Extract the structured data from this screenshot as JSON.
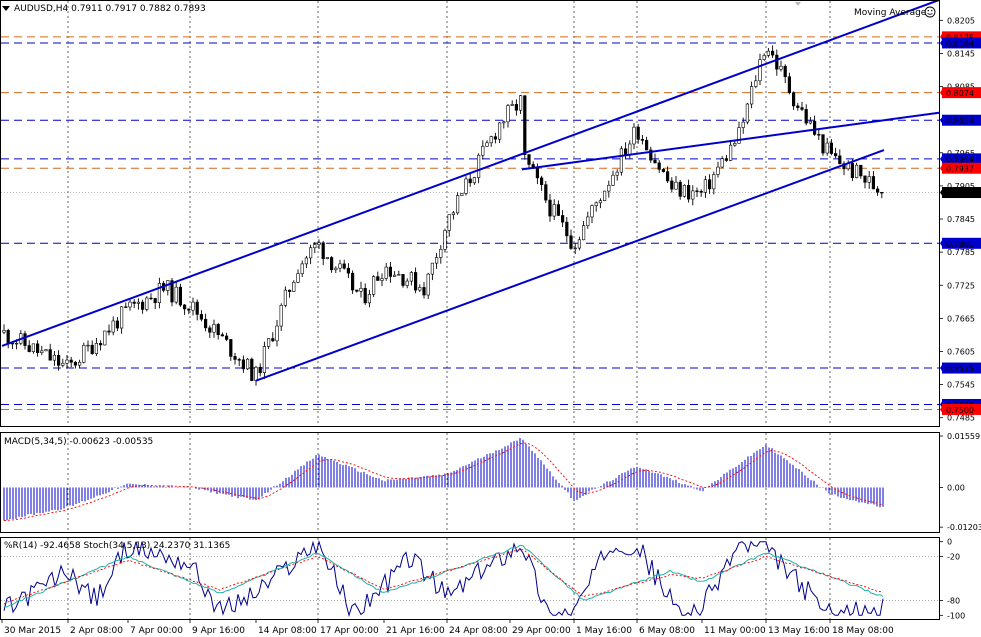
{
  "header": {
    "symbol_line": "AUDUSD,H4  0.7911 0.7917 0.7882 0.7893",
    "indicator_label": "Moving Average"
  },
  "colors": {
    "background": "#ffffff",
    "bull_candle": "#000000",
    "bear_candle": "#000000",
    "blue_line": "#0000cc",
    "orange_line": "#d2691e",
    "grid": "#000000",
    "macd_hist": "#0000cc",
    "macd_signal": "#ff0000",
    "wpr": "#00008b",
    "stoch_main": "#20b2aa",
    "stoch_signal": "#ff0000",
    "badge_red": "#ff0000",
    "badge_blue": "#0000cc",
    "badge_black": "#000000"
  },
  "chart_data": [
    {
      "type": "candlestick",
      "panel": "price",
      "symbol": "AUDUSD",
      "timeframe": "H4",
      "ylim": [
        0.747,
        0.824
      ],
      "y_ticks": [
        0.8205,
        0.8145,
        0.8085,
        0.8025,
        0.7965,
        0.7905,
        0.7845,
        0.7785,
        0.7725,
        0.7665,
        0.7605,
        0.7545,
        0.7485
      ],
      "y_tick_labels": [
        "0.8205",
        "0.8145",
        "0.8085",
        "",
        "0.7965",
        "0.7905",
        "0.7845",
        "0.7785",
        "0.7725",
        "0.7665",
        "0.7605",
        "0.7545",
        "0.7485"
      ],
      "x_tick_labels": [
        "30 Mar 2015",
        "2 Apr 08:00",
        "7 Apr 00:00",
        "9 Apr 16:00",
        "14 Apr 08:00",
        "17 Apr 00:00",
        "21 Apr 16:00",
        "24 Apr 08:00",
        "29 Apr 00:00",
        "1 May 16:00",
        "6 May 08:00",
        "11 May 00:00",
        "13 May 16:00",
        "18 May 08:00"
      ],
      "vertical_grid": [
        "2 Apr 08:00",
        "9 Apr 16:00",
        "17 Apr 00:00",
        "24 Apr 08:00",
        "1 May 16:00",
        "6 May 08:00",
        "13 May 16:00",
        "18 May 08:00"
      ],
      "ohlc_key_points": [
        [
          "30 Mar 2015",
          0.764
        ],
        [
          "2 Apr 08:00",
          0.7575
        ],
        [
          "7 Apr 00:00",
          0.768
        ],
        [
          "8 Apr 08:00",
          0.772
        ],
        [
          "9 Apr 16:00",
          0.769
        ],
        [
          "14 Apr 08:00",
          0.756
        ],
        [
          "16 Apr 00:00",
          0.776
        ],
        [
          "17 Apr 00:00",
          0.78
        ],
        [
          "20 Apr 08:00",
          0.77
        ],
        [
          "21 Apr 16:00",
          0.776
        ],
        [
          "22 Apr 16:00",
          0.772
        ],
        [
          "24 Apr 08:00",
          0.784
        ],
        [
          "27 Apr 08:00",
          0.802
        ],
        [
          "28 Apr 16:00",
          0.806
        ],
        [
          "29 Apr 00:00",
          0.8
        ],
        [
          "30 Apr 08:00",
          0.786
        ],
        [
          "1 May 16:00",
          0.78
        ],
        [
          "5 May 08:00",
          0.796
        ],
        [
          "6 May 08:00",
          0.801
        ],
        [
          "7 May 08:00",
          0.79
        ],
        [
          "11 May 00:00",
          0.789
        ],
        [
          "12 May 08:00",
          0.8
        ],
        [
          "13 May 00:00",
          0.813
        ],
        [
          "13 May 16:00",
          0.8164
        ],
        [
          "14 May 16:00",
          0.806
        ],
        [
          "15 May 16:00",
          0.8
        ],
        [
          "18 May 08:00",
          0.796
        ],
        [
          "19 May 08:00",
          0.7893
        ]
      ],
      "horizontal_levels": [
        {
          "value": 0.8175,
          "label": "0.8175",
          "style": "orange",
          "badge": "red"
        },
        {
          "value": 0.8164,
          "label": "0.8164",
          "style": "blue",
          "badge": "blue"
        },
        {
          "value": 0.8074,
          "label": "0.8074",
          "style": "orange",
          "badge": "red"
        },
        {
          "value": 0.8024,
          "label": "0.8024",
          "style": "blue",
          "badge": "blue"
        },
        {
          "value": 0.7954,
          "label": "0.7954",
          "style": "blue",
          "badge": "blue"
        },
        {
          "value": 0.7937,
          "label": "0.7937",
          "style": "orange",
          "badge": "red"
        },
        {
          "value": 0.7893,
          "label": "0.7893",
          "style": "gray",
          "badge": "black"
        },
        {
          "value": 0.7801,
          "label": "0.7801",
          "style": "blue",
          "badge": "blue"
        },
        {
          "value": 0.7575,
          "label": "0.7575",
          "style": "blue",
          "badge": "blue"
        },
        {
          "value": 0.7509,
          "label": "0.7509",
          "style": "blue",
          "badge": "blue"
        },
        {
          "value": 0.75,
          "label": "0.7500",
          "style": "orange",
          "badge": "red"
        }
      ],
      "trend_channel": {
        "upper": [
          [
            "30 Mar 2015",
            0.7615
          ],
          [
            "19 May 08:00",
            0.8205
          ]
        ],
        "lower": [
          [
            "14 Apr 08:00",
            0.7552
          ],
          [
            "19 May 08:00",
            0.797
          ]
        ],
        "middle": [
          [
            "28 Apr 16:00",
            0.7935
          ],
          [
            "19 May 08:00",
            0.8024
          ]
        ]
      }
    },
    {
      "type": "bar",
      "panel": "macd",
      "title": "MACD(5,34,5) -0.00623 -0.00535",
      "ylim": [
        -0.0135,
        0.0165
      ],
      "y_tick_labels": [
        "0.01559",
        "0.00",
        "-0.01203"
      ],
      "key_points": [
        [
          "30 Mar 2015",
          -0.01
        ],
        [
          "2 Apr 08:00",
          -0.006
        ],
        [
          "7 Apr 00:00",
          0.001
        ],
        [
          "9 Apr 16:00",
          0.0
        ],
        [
          "14 Apr 08:00",
          -0.004
        ],
        [
          "17 Apr 00:00",
          0.01
        ],
        [
          "21 Apr 16:00",
          0.002
        ],
        [
          "24 Apr 08:00",
          0.004
        ],
        [
          "28 Apr 16:00",
          0.015
        ],
        [
          "1 May 16:00",
          -0.004
        ],
        [
          "6 May 08:00",
          0.0065
        ],
        [
          "11 May 00:00",
          -0.001
        ],
        [
          "13 May 16:00",
          0.013
        ],
        [
          "18 May 08:00",
          -0.002
        ],
        [
          "19 May 08:00",
          -0.0062
        ]
      ]
    },
    {
      "type": "line",
      "panel": "wpr_stoch",
      "title": "%R(14) -92.4658  Stoch(34,5,13) 24.2370 31.1365",
      "ylim": [
        -105,
        5
      ],
      "y_tick_labels": [
        "0",
        "-20",
        "-80",
        "-100"
      ],
      "series": [
        {
          "name": "%R(14)",
          "key_points": [
            [
              "30 Mar 2015",
              -95
            ],
            [
              "2 Apr 08:00",
              -40
            ],
            [
              "4 Apr",
              -80
            ],
            [
              "7 Apr 00:00",
              -5
            ],
            [
              "9 Apr 16:00",
              -30
            ],
            [
              "11 Apr",
              -95
            ],
            [
              "14 Apr 08:00",
              -70
            ],
            [
              "17 Apr 00:00",
              0
            ],
            [
              "18 Apr",
              -98
            ],
            [
              "21 Apr 16:00",
              -60
            ],
            [
              "22 Apr",
              -20
            ],
            [
              "24 Apr 08:00",
              -75
            ],
            [
              "28 Apr 16:00",
              0
            ],
            [
              "30 Apr",
              -100
            ],
            [
              "1 May 16:00",
              -95
            ],
            [
              "4 May",
              0
            ],
            [
              "6 May 08:00",
              -5
            ],
            [
              "8 May",
              -100
            ],
            [
              "11 May 00:00",
              -90
            ],
            [
              "12 May",
              -5
            ],
            [
              "13 May 16:00",
              -10
            ],
            [
              "15 May",
              -60
            ],
            [
              "18 May 08:00",
              -100
            ],
            [
              "19 May 08:00",
              -92
            ]
          ]
        },
        {
          "name": "Stoch main",
          "key_points": [
            [
              "30 Mar 2015",
              -90
            ],
            [
              "7 Apr 00:00",
              -20
            ],
            [
              "11 Apr",
              -70
            ],
            [
              "17 Apr 00:00",
              -15
            ],
            [
              "21 Apr 16:00",
              -70
            ],
            [
              "28 Apr 16:00",
              -5
            ],
            [
              "2 May",
              -80
            ],
            [
              "7 May",
              -40
            ],
            [
              "11 May 00:00",
              -55
            ],
            [
              "13 May 16:00",
              -15
            ],
            [
              "19 May 08:00",
              -75
            ]
          ]
        },
        {
          "name": "Stoch signal",
          "key_points": [
            [
              "30 Mar 2015",
              -85
            ],
            [
              "7 Apr 00:00",
              -25
            ],
            [
              "11 Apr",
              -65
            ],
            [
              "17 Apr 00:00",
              -20
            ],
            [
              "21 Apr 16:00",
              -65
            ],
            [
              "28 Apr 16:00",
              -10
            ],
            [
              "2 May",
              -75
            ],
            [
              "7 May",
              -45
            ],
            [
              "11 May 00:00",
              -50
            ],
            [
              "13 May 16:00",
              -20
            ],
            [
              "19 May 08:00",
              -70
            ]
          ]
        }
      ]
    }
  ]
}
